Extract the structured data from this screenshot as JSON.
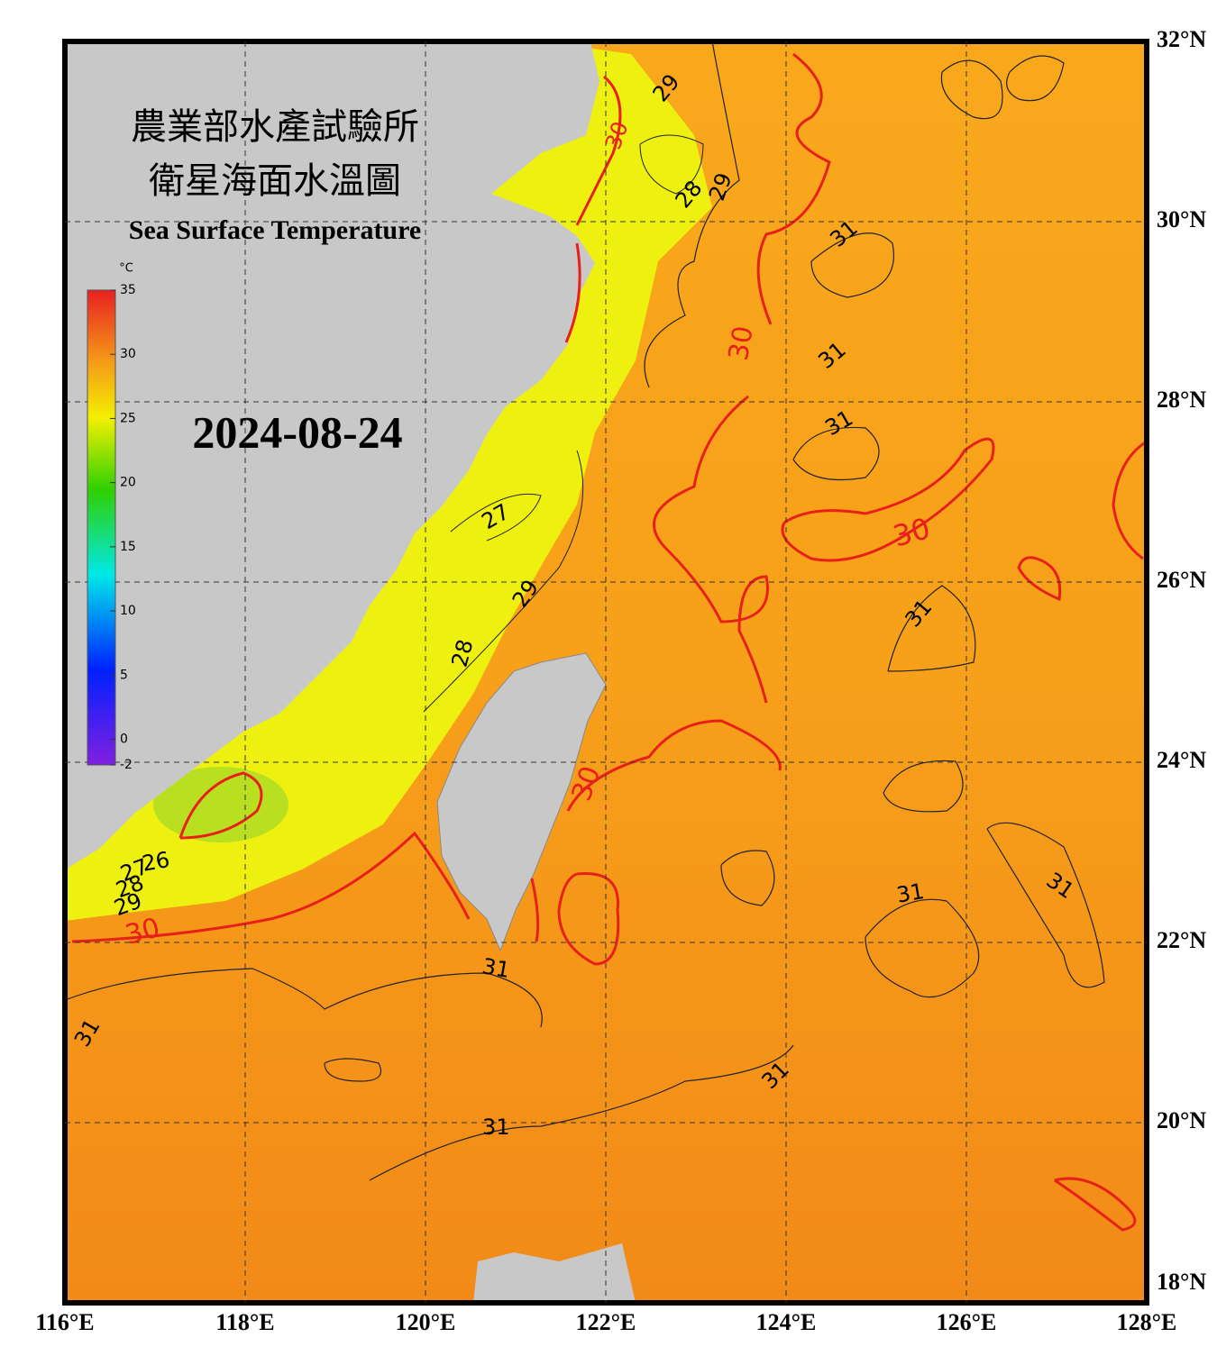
{
  "header": {
    "title_zh_1": "農業部水產試驗所",
    "title_zh_2": "衛星海面水溫圖",
    "title_en": "Sea Surface Temperature",
    "date": "2024-08-24"
  },
  "colorbar": {
    "unit": "°C",
    "range": [
      -2,
      35
    ],
    "ticks": [
      35,
      30,
      25,
      20,
      15,
      10,
      5,
      0,
      -2
    ]
  },
  "lon_ticks": [
    {
      "value": 116,
      "label": "116°E"
    },
    {
      "value": 118,
      "label": "118°E"
    },
    {
      "value": 120,
      "label": "120°E"
    },
    {
      "value": 122,
      "label": "122°E"
    },
    {
      "value": 124,
      "label": "124°E"
    },
    {
      "value": 126,
      "label": "126°E"
    },
    {
      "value": 128,
      "label": "128°E"
    }
  ],
  "lat_ticks": [
    {
      "value": 32,
      "label": "32°N"
    },
    {
      "value": 30,
      "label": "30°N"
    },
    {
      "value": 28,
      "label": "28°N"
    },
    {
      "value": 26,
      "label": "26°N"
    },
    {
      "value": 24,
      "label": "24°N"
    },
    {
      "value": 22,
      "label": "22°N"
    },
    {
      "value": 20,
      "label": "20°N"
    },
    {
      "value": 18,
      "label": "18°N"
    }
  ],
  "contour_labels": [
    29,
    30,
    28,
    29,
    31,
    30,
    31,
    31,
    27,
    30,
    29,
    28,
    31,
    30,
    26,
    27,
    28,
    29,
    30,
    31,
    31,
    31,
    31,
    31,
    31
  ]
}
